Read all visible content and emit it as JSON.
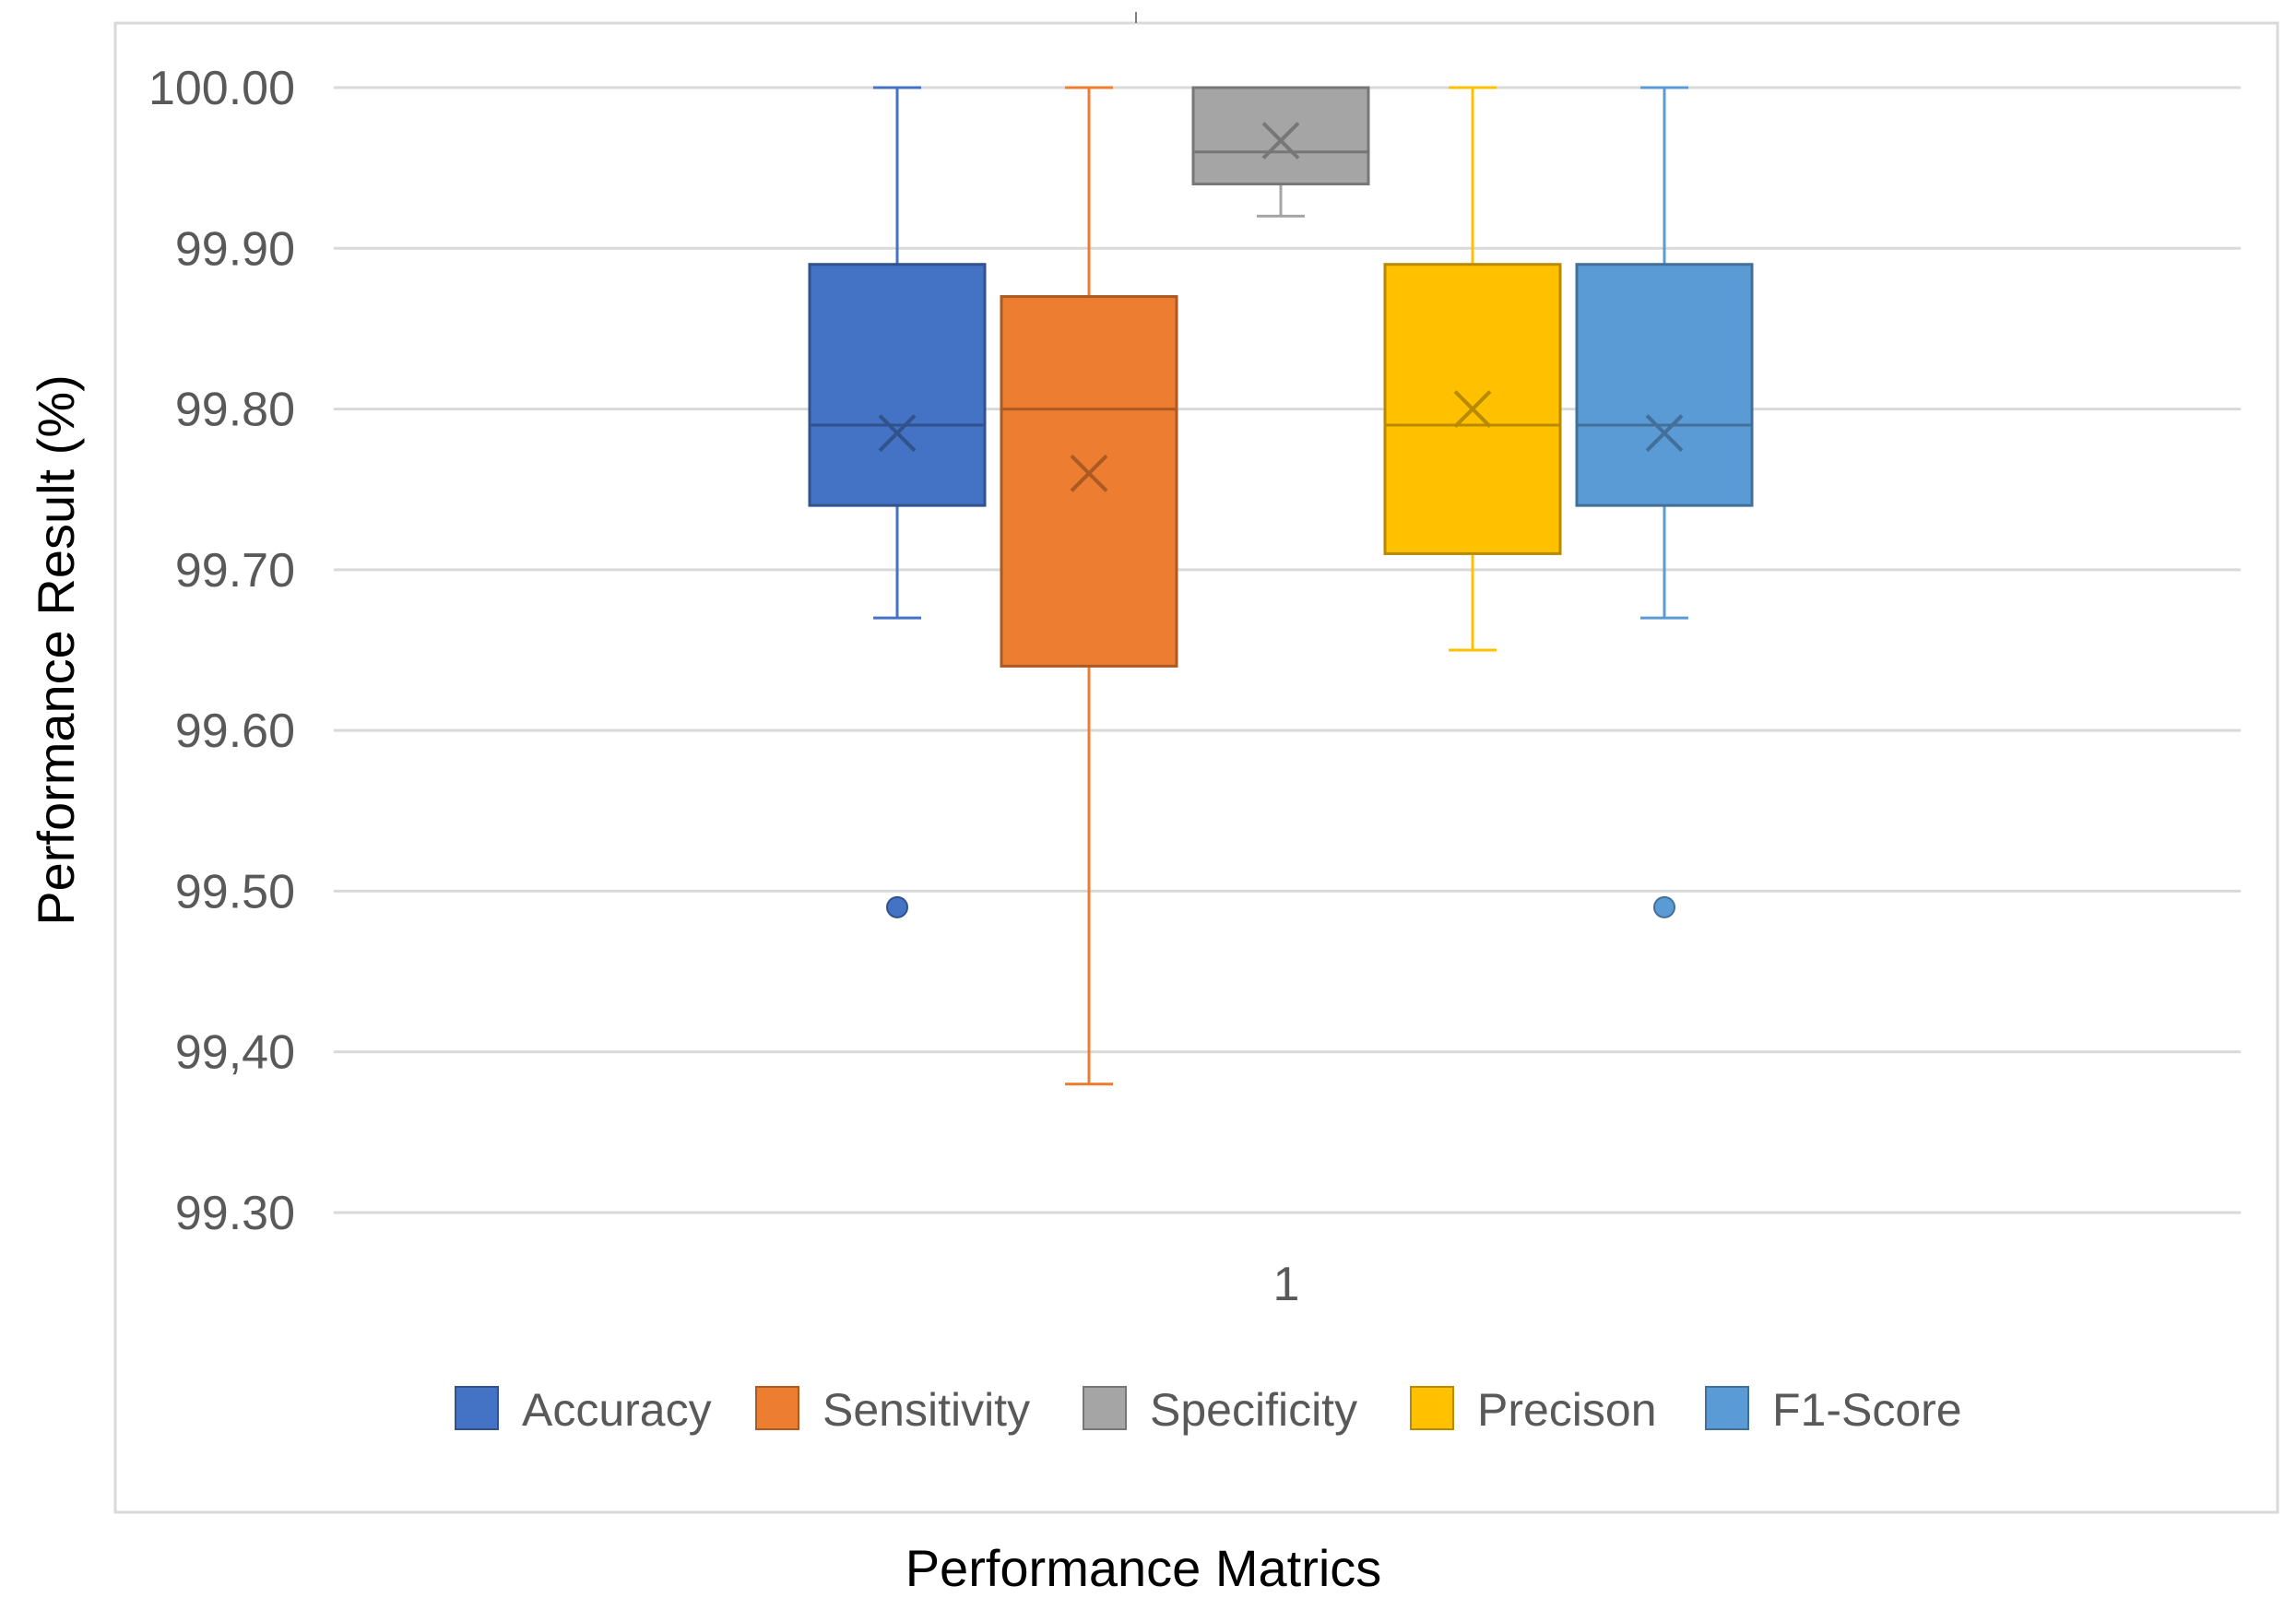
{
  "chart_data": {
    "type": "boxplot",
    "title": "",
    "xlabel": "Performance Matrics",
    "ylabel": "Performance Result (%)",
    "categories": [
      "1"
    ],
    "ylim": [
      99.3,
      100.0
    ],
    "yticks": [
      "99.30",
      "99,40",
      "99.50",
      "99.60",
      "99.70",
      "99.80",
      "99.90",
      "100.00"
    ],
    "ytick_values": [
      99.3,
      99.4,
      99.5,
      99.6,
      99.7,
      99.8,
      99.9,
      100.0
    ],
    "grid": true,
    "legend_position": "bottom",
    "series": [
      {
        "name": "Accuracy",
        "color": "#4472C4",
        "min": 99.67,
        "q1": 99.74,
        "median": 99.79,
        "q3": 99.89,
        "max": 100.0,
        "mean": 99.785,
        "outliers": [
          99.49
        ]
      },
      {
        "name": "Sensitivity",
        "color": "#ED7D31",
        "min": 99.38,
        "q1": 99.64,
        "median": 99.8,
        "q3": 99.87,
        "max": 100.0,
        "mean": 99.76,
        "outliers": []
      },
      {
        "name": "Specificity",
        "color": "#A5A5A5",
        "min": 99.92,
        "q1": 99.94,
        "median": 99.96,
        "q3": 100.0,
        "max": 100.0,
        "mean": 99.967,
        "outliers": []
      },
      {
        "name": "Precison",
        "color": "#FFC000",
        "min": 99.65,
        "q1": 99.71,
        "median": 99.79,
        "q3": 99.89,
        "max": 100.0,
        "mean": 99.8,
        "outliers": []
      },
      {
        "name": "F1-Score",
        "color": "#5B9BD5",
        "min": 99.67,
        "q1": 99.74,
        "median": 99.79,
        "q3": 99.89,
        "max": 100.0,
        "mean": 99.785,
        "outliers": [
          99.49
        ]
      }
    ]
  }
}
